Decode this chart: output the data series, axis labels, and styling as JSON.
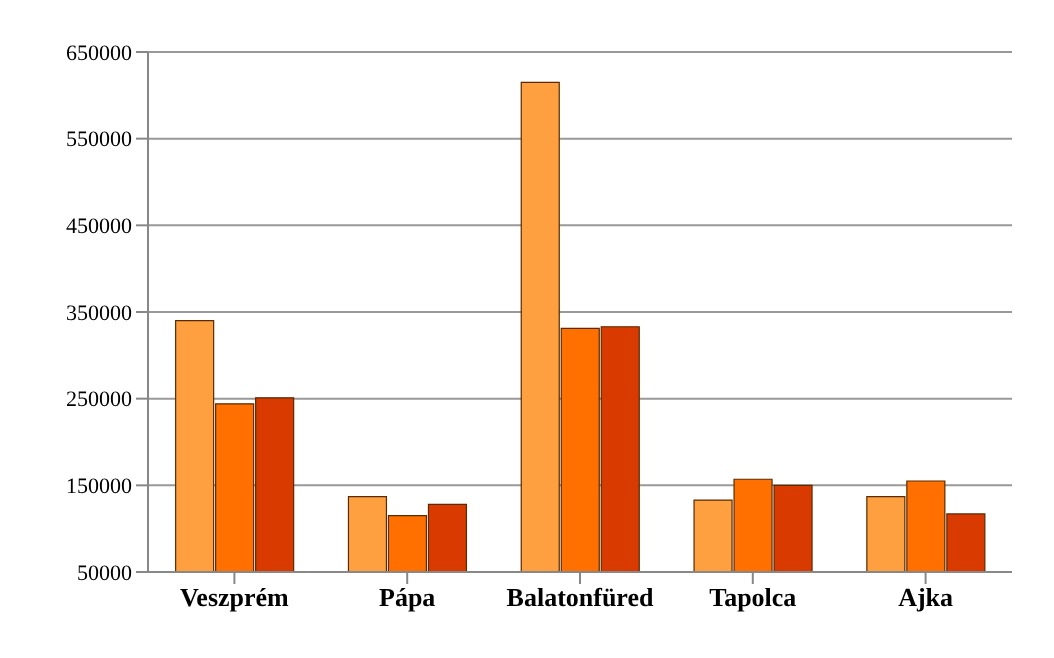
{
  "chart_data": {
    "type": "bar",
    "categories": [
      "Veszprém",
      "Pápa",
      "Balatonfüred",
      "Tapolca",
      "Ajka"
    ],
    "series": [
      {
        "color": "#ffa040",
        "values": [
          340000,
          137000,
          615000,
          133000,
          137000
        ]
      },
      {
        "color": "#ff7000",
        "values": [
          244000,
          115000,
          331000,
          157000,
          155000
        ]
      },
      {
        "color": "#d83a00",
        "values": [
          251000,
          128000,
          333000,
          150000,
          117000
        ]
      }
    ],
    "ylim": [
      50000,
      650000
    ],
    "yticks": [
      50000,
      150000,
      250000,
      350000,
      450000,
      550000,
      650000
    ],
    "grid": "y",
    "legend": false
  }
}
